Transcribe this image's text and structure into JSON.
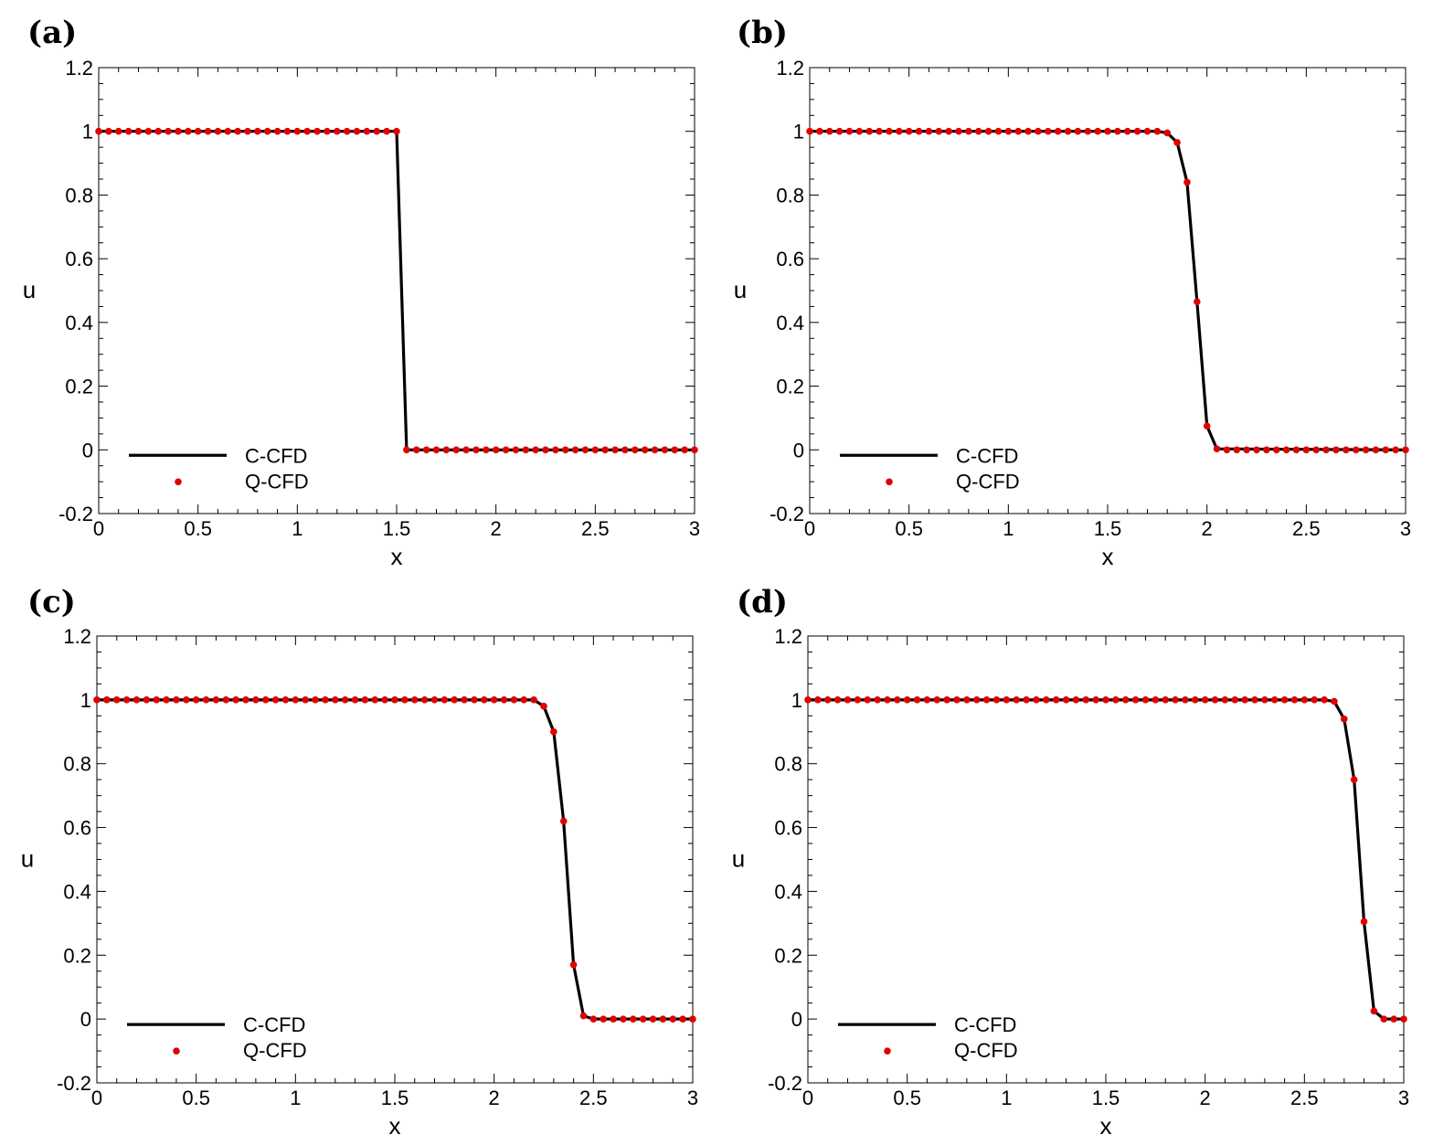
{
  "figure": {
    "panel_labels": [
      "(a)",
      "(b)",
      "(c)",
      "(d)"
    ]
  },
  "colors": {
    "c_cfd_line": "#000000",
    "q_cfd_marker": "#e00000"
  },
  "legend": {
    "line_label": "C-CFD",
    "marker_label": "Q-CFD",
    "placement": "bottom-left"
  },
  "chart_data": [
    {
      "type": "line",
      "label": "(a)",
      "xlabel": "x",
      "ylabel": "u",
      "xlim": [
        0,
        3
      ],
      "ylim": [
        -0.2,
        1.2
      ],
      "xticks": [
        "0",
        "0.5",
        "1",
        "1.5",
        "2",
        "2.5",
        "3"
      ],
      "yticks": [
        "-0.2",
        "0",
        "0.2",
        "0.4",
        "0.6",
        "0.8",
        "1",
        "1.2"
      ],
      "grid": false,
      "series": [
        {
          "name": "C-CFD",
          "style": "line",
          "x": [
            0,
            1.5,
            1.55,
            3
          ],
          "y": [
            1,
            1,
            0,
            0
          ]
        },
        {
          "name": "Q-CFD",
          "style": "markers",
          "x": [
            0,
            0.05,
            0.1,
            0.15,
            0.2,
            0.25,
            0.3,
            0.35,
            0.4,
            0.45,
            0.5,
            0.55,
            0.6,
            0.65,
            0.7,
            0.75,
            0.8,
            0.85,
            0.9,
            0.95,
            1,
            1.05,
            1.1,
            1.15,
            1.2,
            1.25,
            1.3,
            1.35,
            1.4,
            1.45,
            1.5,
            1.55,
            1.6,
            1.65,
            1.7,
            1.75,
            1.8,
            1.85,
            1.9,
            1.95,
            2,
            2.05,
            2.1,
            2.15,
            2.2,
            2.25,
            2.3,
            2.35,
            2.4,
            2.45,
            2.5,
            2.55,
            2.6,
            2.65,
            2.7,
            2.75,
            2.8,
            2.85,
            2.9,
            2.95,
            3
          ],
          "y": [
            1,
            1,
            1,
            1,
            1,
            1,
            1,
            1,
            1,
            1,
            1,
            1,
            1,
            1,
            1,
            1,
            1,
            1,
            1,
            1,
            1,
            1,
            1,
            1,
            1,
            1,
            1,
            1,
            1,
            1,
            1,
            0,
            0,
            0,
            0,
            0,
            0,
            0,
            0,
            0,
            0,
            0,
            0,
            0,
            0,
            0,
            0,
            0,
            0,
            0,
            0,
            0,
            0,
            0,
            0,
            0,
            0,
            0,
            0,
            0,
            0
          ]
        }
      ]
    },
    {
      "type": "line",
      "label": "(b)",
      "xlabel": "x",
      "ylabel": "u",
      "xlim": [
        0,
        3
      ],
      "ylim": [
        -0.2,
        1.2
      ],
      "xticks": [
        "0",
        "0.5",
        "1",
        "1.5",
        "2",
        "2.5",
        "3"
      ],
      "yticks": [
        "-0.2",
        "0",
        "0.2",
        "0.4",
        "0.6",
        "0.8",
        "1",
        "1.2"
      ],
      "grid": false,
      "series": [
        {
          "name": "C-CFD",
          "style": "line",
          "x": [
            0,
            1.75,
            1.8,
            1.85,
            1.9,
            1.95,
            2.0,
            2.05,
            3
          ],
          "y": [
            1,
            1,
            0.995,
            0.965,
            0.84,
            0.465,
            0.075,
            0.003,
            0
          ]
        },
        {
          "name": "Q-CFD",
          "style": "markers",
          "x": [
            0,
            0.05,
            0.1,
            0.15,
            0.2,
            0.25,
            0.3,
            0.35,
            0.4,
            0.45,
            0.5,
            0.55,
            0.6,
            0.65,
            0.7,
            0.75,
            0.8,
            0.85,
            0.9,
            0.95,
            1,
            1.05,
            1.1,
            1.15,
            1.2,
            1.25,
            1.3,
            1.35,
            1.4,
            1.45,
            1.5,
            1.55,
            1.6,
            1.65,
            1.7,
            1.75,
            1.8,
            1.85,
            1.9,
            1.95,
            2,
            2.05,
            2.1,
            2.15,
            2.2,
            2.25,
            2.3,
            2.35,
            2.4,
            2.45,
            2.5,
            2.55,
            2.6,
            2.65,
            2.7,
            2.75,
            2.8,
            2.85,
            2.9,
            2.95,
            3
          ],
          "y": [
            1,
            1,
            1,
            1,
            1,
            1,
            1,
            1,
            1,
            1,
            1,
            1,
            1,
            1,
            1,
            1,
            1,
            1,
            1,
            1,
            1,
            1,
            1,
            1,
            1,
            1,
            1,
            1,
            1,
            1,
            1,
            1,
            1,
            1,
            1,
            1,
            0.995,
            0.965,
            0.84,
            0.465,
            0.075,
            0.003,
            0,
            0,
            0,
            0,
            0,
            0,
            0,
            0,
            0,
            0,
            0,
            0,
            0,
            0,
            0,
            0,
            0,
            0,
            0
          ]
        }
      ]
    },
    {
      "type": "line",
      "label": "(c)",
      "xlabel": "x",
      "ylabel": "u",
      "xlim": [
        0,
        3
      ],
      "ylim": [
        -0.2,
        1.2
      ],
      "xticks": [
        "0",
        "0.5",
        "1",
        "1.5",
        "2",
        "2.5",
        "3"
      ],
      "yticks": [
        "-0.2",
        "0",
        "0.2",
        "0.4",
        "0.6",
        "0.8",
        "1",
        "1.2"
      ],
      "grid": false,
      "series": [
        {
          "name": "C-CFD",
          "style": "line",
          "x": [
            0,
            2.2,
            2.25,
            2.3,
            2.35,
            2.4,
            2.45,
            2.5,
            3
          ],
          "y": [
            1,
            1,
            0.98,
            0.9,
            0.62,
            0.17,
            0.01,
            0,
            0
          ]
        },
        {
          "name": "Q-CFD",
          "style": "markers",
          "x": [
            0,
            0.05,
            0.1,
            0.15,
            0.2,
            0.25,
            0.3,
            0.35,
            0.4,
            0.45,
            0.5,
            0.55,
            0.6,
            0.65,
            0.7,
            0.75,
            0.8,
            0.85,
            0.9,
            0.95,
            1,
            1.05,
            1.1,
            1.15,
            1.2,
            1.25,
            1.3,
            1.35,
            1.4,
            1.45,
            1.5,
            1.55,
            1.6,
            1.65,
            1.7,
            1.75,
            1.8,
            1.85,
            1.9,
            1.95,
            2,
            2.05,
            2.1,
            2.15,
            2.2,
            2.25,
            2.3,
            2.35,
            2.4,
            2.45,
            2.5,
            2.55,
            2.6,
            2.65,
            2.7,
            2.75,
            2.8,
            2.85,
            2.9,
            2.95,
            3
          ],
          "y": [
            1,
            1,
            1,
            1,
            1,
            1,
            1,
            1,
            1,
            1,
            1,
            1,
            1,
            1,
            1,
            1,
            1,
            1,
            1,
            1,
            1,
            1,
            1,
            1,
            1,
            1,
            1,
            1,
            1,
            1,
            1,
            1,
            1,
            1,
            1,
            1,
            1,
            1,
            1,
            1,
            1,
            1,
            1,
            1,
            1,
            0.98,
            0.9,
            0.62,
            0.17,
            0.01,
            0,
            0,
            0,
            0,
            0,
            0,
            0,
            0,
            0,
            0,
            0
          ]
        }
      ]
    },
    {
      "type": "line",
      "label": "(d)",
      "xlabel": "x",
      "ylabel": "u",
      "xlim": [
        0,
        3
      ],
      "ylim": [
        -0.2,
        1.2
      ],
      "xticks": [
        "0",
        "0.5",
        "1",
        "1.5",
        "2",
        "2.5",
        "3"
      ],
      "yticks": [
        "-0.2",
        "0",
        "0.2",
        "0.4",
        "0.6",
        "0.8",
        "1",
        "1.2"
      ],
      "grid": false,
      "series": [
        {
          "name": "C-CFD",
          "style": "line",
          "x": [
            0,
            2.6,
            2.65,
            2.7,
            2.75,
            2.8,
            2.85,
            2.9,
            3
          ],
          "y": [
            1,
            1,
            0.995,
            0.94,
            0.75,
            0.305,
            0.025,
            0,
            0
          ]
        },
        {
          "name": "Q-CFD",
          "style": "markers",
          "x": [
            0,
            0.05,
            0.1,
            0.15,
            0.2,
            0.25,
            0.3,
            0.35,
            0.4,
            0.45,
            0.5,
            0.55,
            0.6,
            0.65,
            0.7,
            0.75,
            0.8,
            0.85,
            0.9,
            0.95,
            1,
            1.05,
            1.1,
            1.15,
            1.2,
            1.25,
            1.3,
            1.35,
            1.4,
            1.45,
            1.5,
            1.55,
            1.6,
            1.65,
            1.7,
            1.75,
            1.8,
            1.85,
            1.9,
            1.95,
            2,
            2.05,
            2.1,
            2.15,
            2.2,
            2.25,
            2.3,
            2.35,
            2.4,
            2.45,
            2.5,
            2.55,
            2.6,
            2.65,
            2.7,
            2.75,
            2.8,
            2.85,
            2.9,
            2.95,
            3
          ],
          "y": [
            1,
            1,
            1,
            1,
            1,
            1,
            1,
            1,
            1,
            1,
            1,
            1,
            1,
            1,
            1,
            1,
            1,
            1,
            1,
            1,
            1,
            1,
            1,
            1,
            1,
            1,
            1,
            1,
            1,
            1,
            1,
            1,
            1,
            1,
            1,
            1,
            1,
            1,
            1,
            1,
            1,
            1,
            1,
            1,
            1,
            1,
            1,
            1,
            1,
            1,
            1,
            1,
            1,
            0.995,
            0.94,
            0.75,
            0.305,
            0.025,
            0,
            0,
            0
          ]
        }
      ]
    }
  ]
}
